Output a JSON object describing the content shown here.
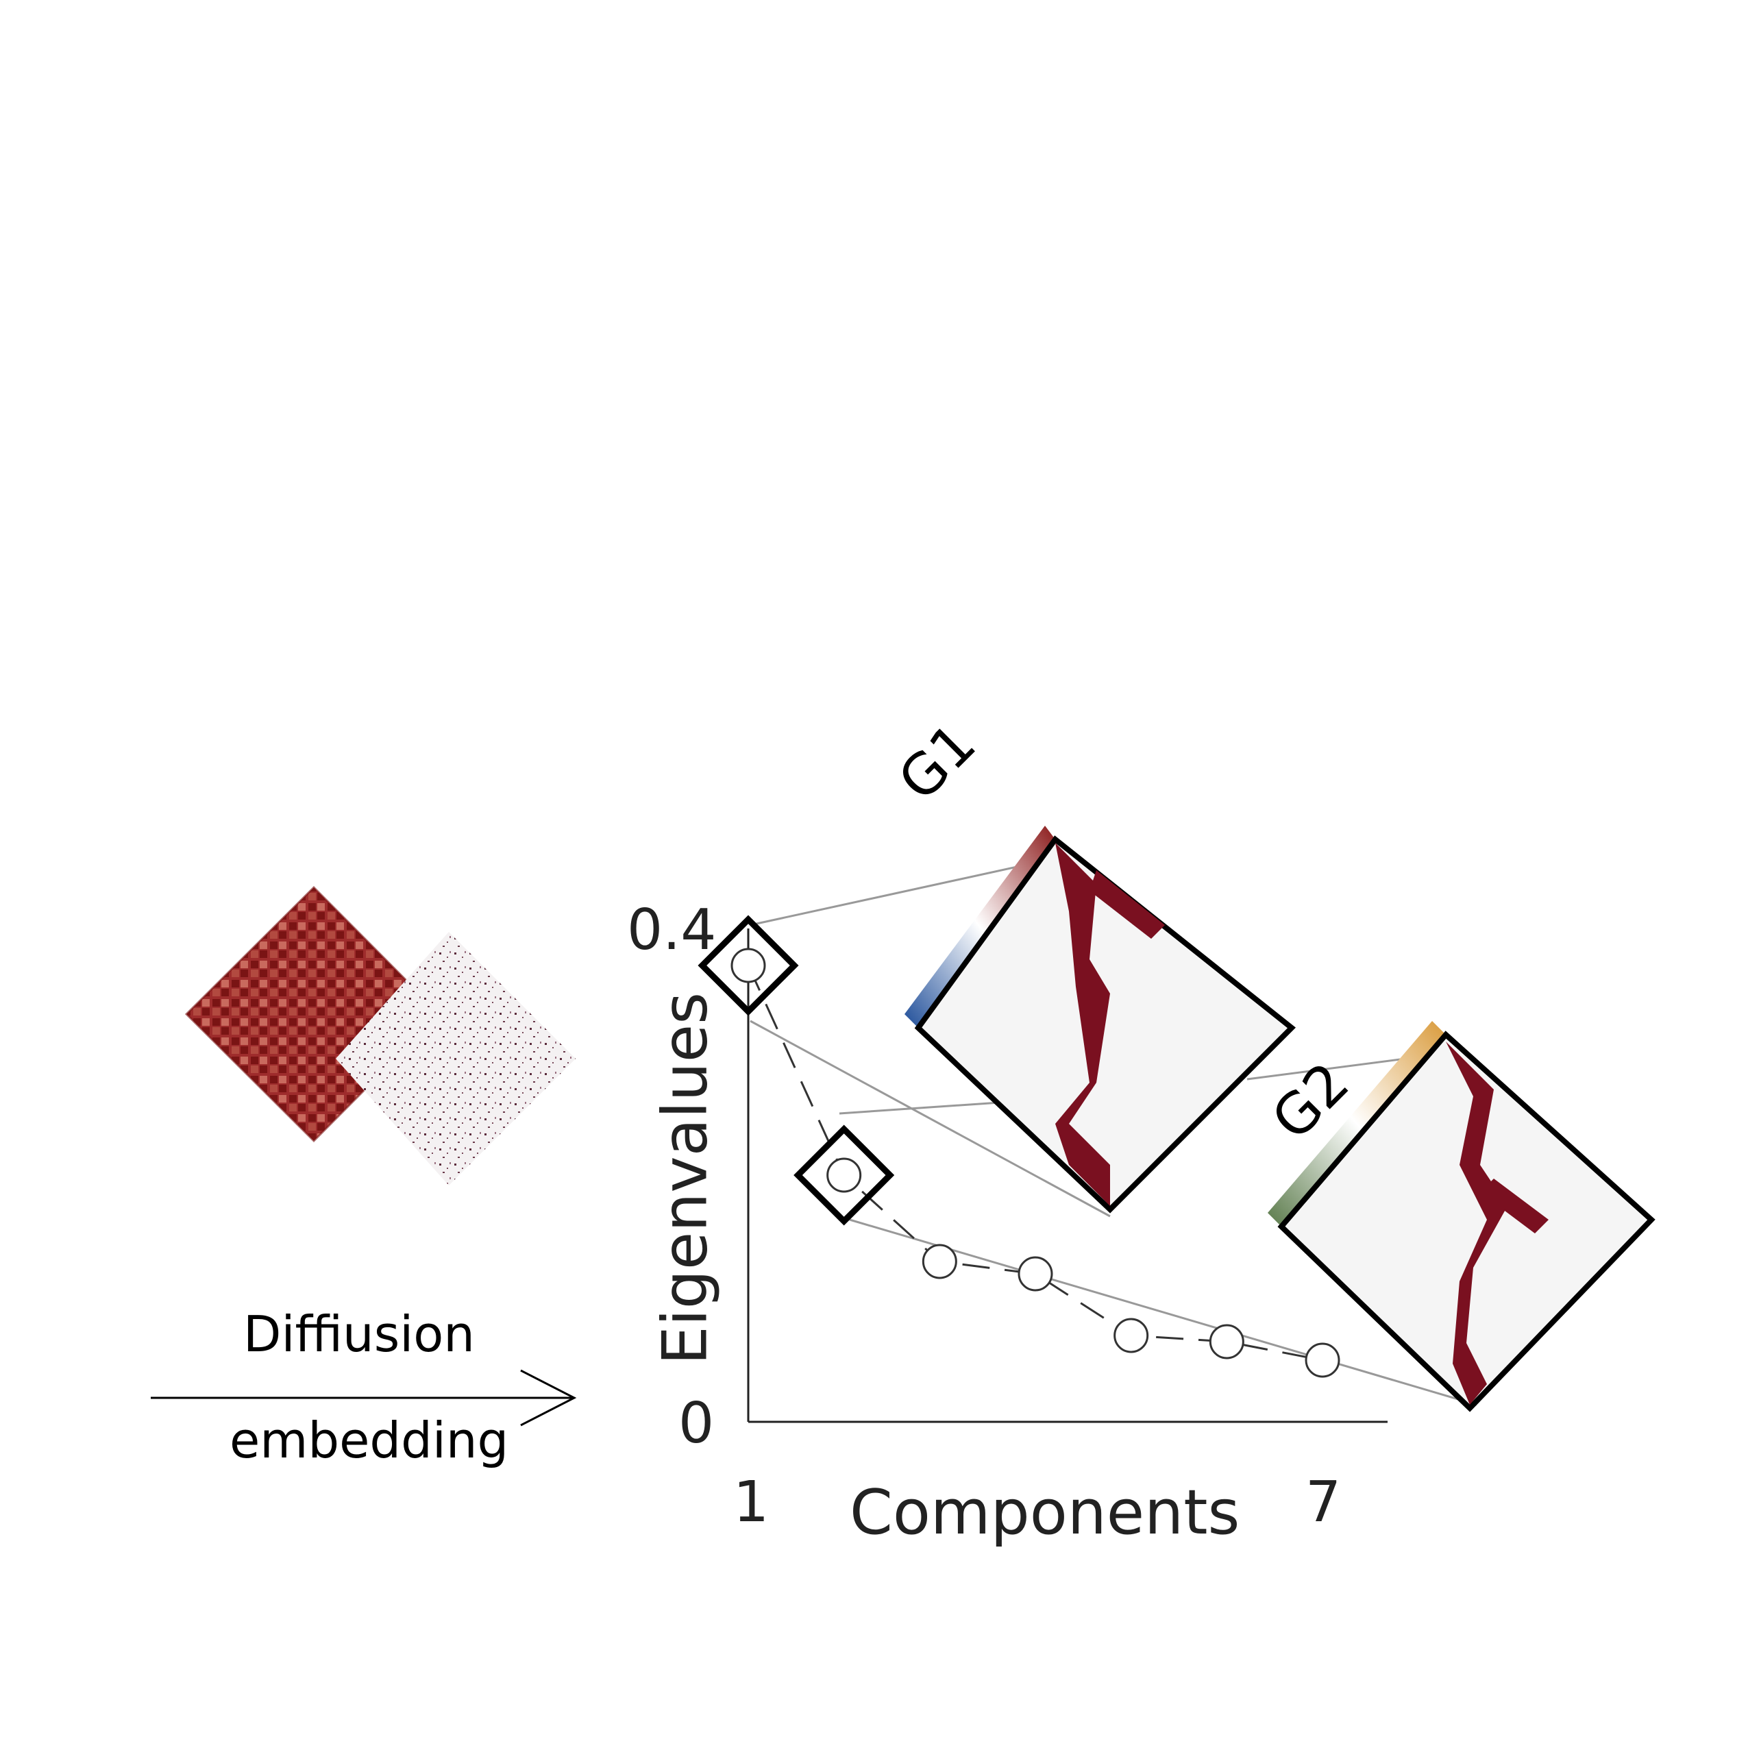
{
  "arrow_label": {
    "top": "Diffiusion",
    "bottom": "embedding"
  },
  "chart_data": {
    "type": "scatter",
    "title": "",
    "xlabel": "Components",
    "ylabel": "Eigenvalues",
    "x": [
      1,
      2,
      3,
      4,
      5,
      6,
      7
    ],
    "values": [
      0.37,
      0.2,
      0.13,
      0.12,
      0.07,
      0.065,
      0.05
    ],
    "xticks": [
      "1",
      "7"
    ],
    "yticks": [
      "0",
      "0.4"
    ],
    "xlim": [
      1,
      7
    ],
    "ylim": [
      0,
      0.4
    ],
    "highlighted": [
      1,
      2
    ],
    "marker": "open-circle",
    "line_style": "dashed"
  },
  "gradients": [
    {
      "label": "G1",
      "component": 1,
      "colors": [
        "#1f4e99",
        "#ffffff",
        "#8b1a1a"
      ]
    },
    {
      "label": "G2",
      "component": 2,
      "colors": [
        "#5a7a4a",
        "#ffffff",
        "#d99a3a"
      ]
    }
  ],
  "colors": {
    "matrix": "#7a1020",
    "matrix_light": "#b33a3a",
    "background": "#f5f5f5"
  }
}
